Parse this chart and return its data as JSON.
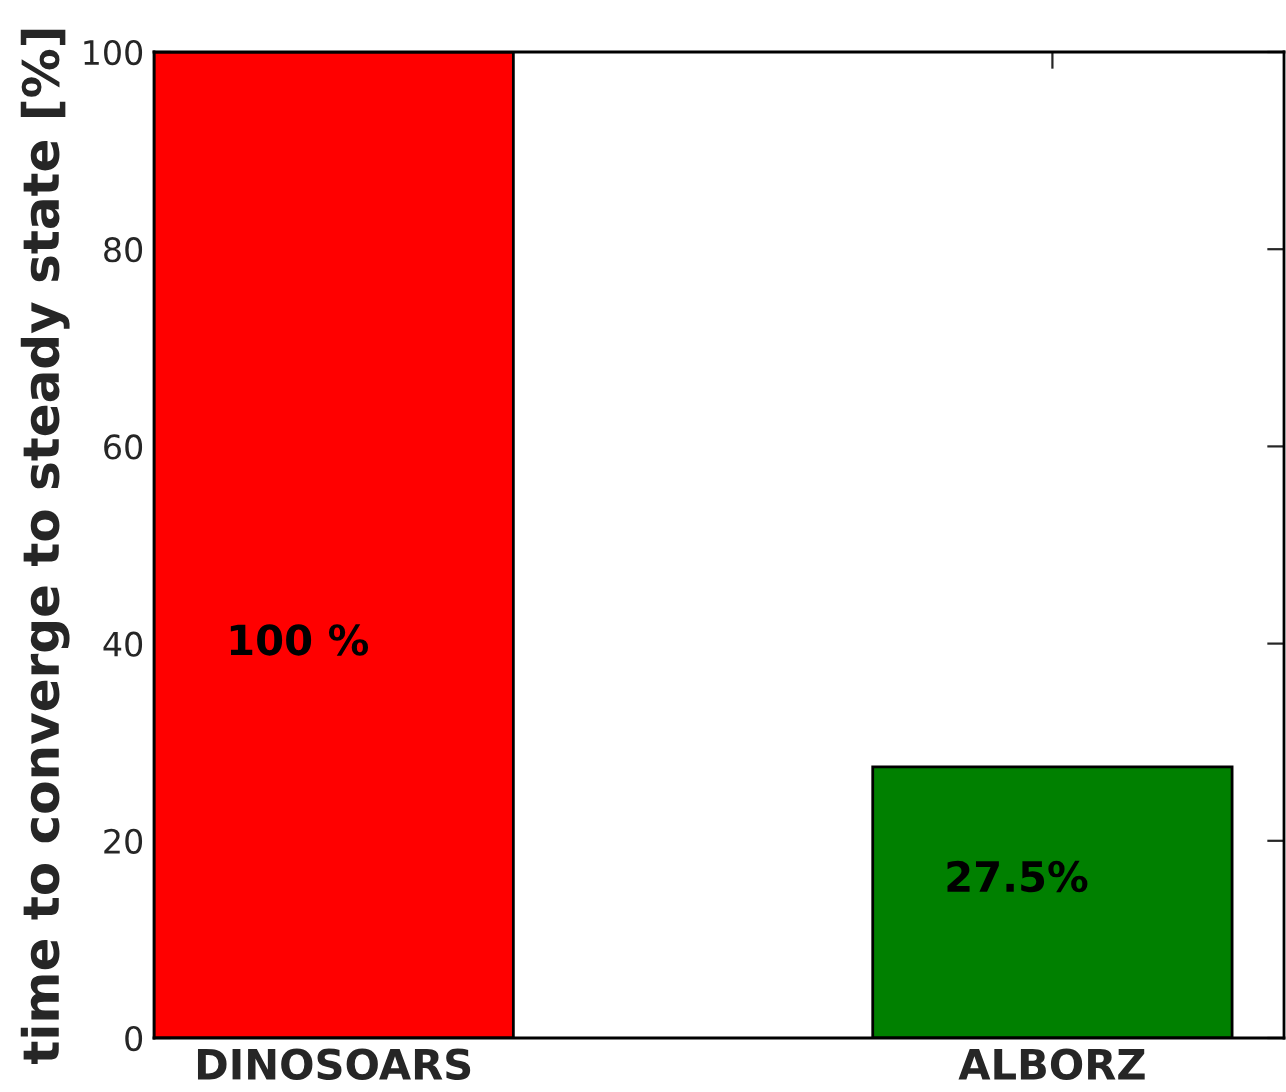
{
  "chart_data": {
    "type": "bar",
    "ylabel": "time to converge to steady state [%]",
    "categories": [
      "DINOSOARS",
      "ALBORZ"
    ],
    "values": [
      100,
      27.5
    ],
    "colors": [
      "#ff0000",
      "#008000"
    ],
    "value_labels": [
      "100 %",
      "27.5%"
    ],
    "ylim": [
      0,
      100
    ],
    "yticks": [
      0,
      20,
      40,
      60,
      80,
      100
    ],
    "grid": false,
    "legend": false
  }
}
